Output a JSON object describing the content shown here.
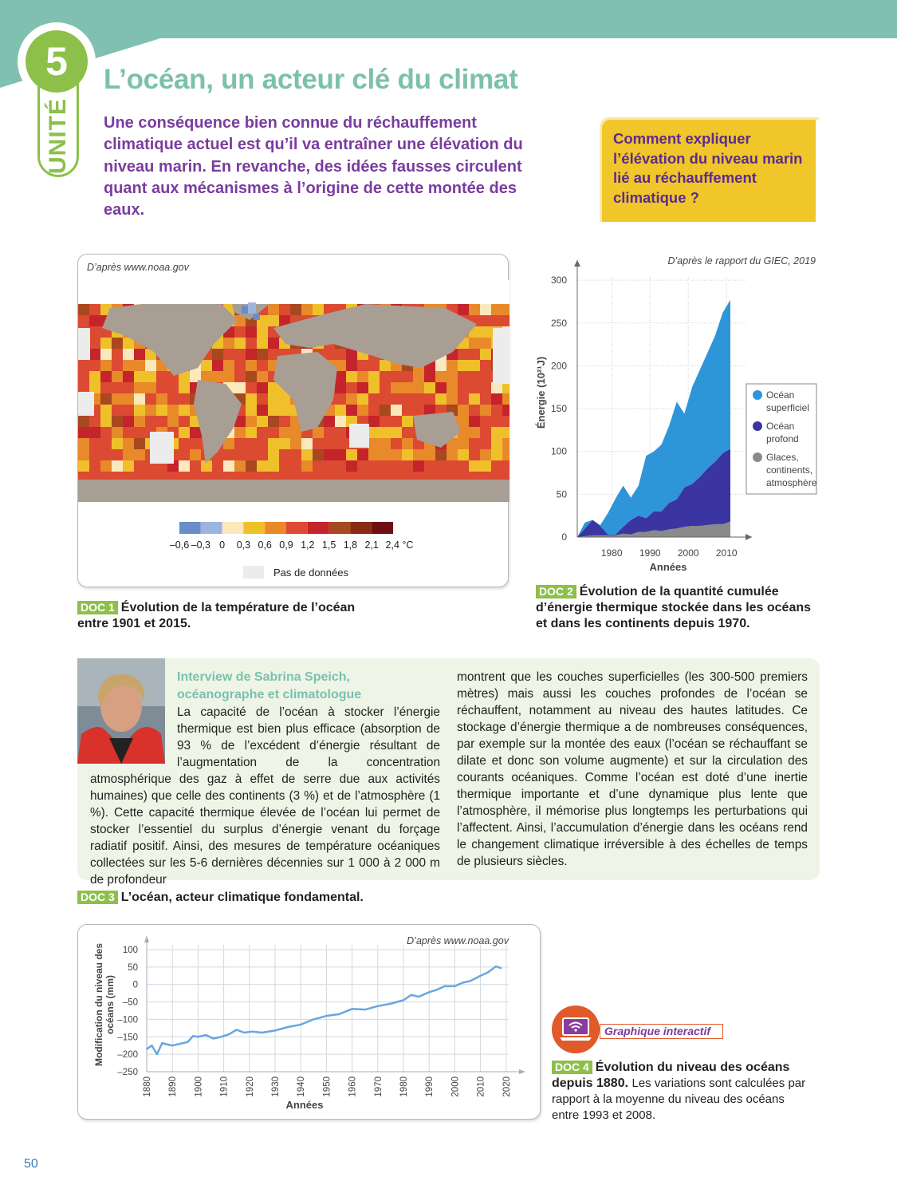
{
  "header": {
    "unit_number": "5",
    "unit_label": "UNITÉ",
    "title": "L’océan, un acteur clé du climat",
    "intro": "Une conséquence bien connue du réchauffement climatique actuel est qu’il va entraîner une élévation du niveau marin. En revanche, des idées fausses circulent quant aux mécanismes à l’origine de cette montée des eaux.",
    "question": "Comment expliquer l’élévation du niveau marin lié au réchauffement climatique ?"
  },
  "doc1": {
    "source": "D’après www.noaa.gov",
    "badge": "DOC 1",
    "caption": "Évolution de la température de l’océan entre 1901 et 2015.",
    "legend_colors": [
      "#6a8cc8",
      "#9eb4e0",
      "#fbe8bd",
      "#f0c02a",
      "#e8892a",
      "#dc4a32",
      "#c4242a",
      "#a8481e",
      "#8a2a14",
      "#6e1010"
    ],
    "legend_ticks": [
      "–0,6",
      "–0,3",
      "0",
      "0,3",
      "0,6",
      "0,9",
      "1,2",
      "1,5",
      "1,8",
      "2,1",
      "2,4 °C"
    ],
    "no_data_label": "Pas de données",
    "no_data_color": "#ececec"
  },
  "doc2": {
    "badge": "DOC 2",
    "caption": "Évolution de la quantité cumulée d’énergie thermique stockée dans les océans et dans les continents depuis 1970."
  },
  "doc3": {
    "badge": "DOC 3",
    "caption": "L’océan, acteur climatique fondamental.",
    "interview_title": "Interview de Sabrina Speich, océanographe et climatologue",
    "text_left": "La capacité de l’océan à stocker l’énergie thermique est bien plus efficace (absorption de 93 % de l’excédent d’énergie résultant de l’augmentation de la concentration atmosphérique des gaz à effet de serre due aux activités humaines) que celle des continents (3 %) et de l’atmosphère (1 %). Cette capacité thermique élevée de l’océan lui permet de stocker l’essentiel du surplus d’énergie venant du forçage radiatif positif. Ainsi, des mesures de température océaniques collectées sur les 5-6 dernières décennies sur 1 000 à 2 000 m de profondeur",
    "text_right": "montrent que les couches superficielles (les 300-500 premiers mètres) mais aussi les couches profondes de l’océan se réchauffent, notamment au niveau des hautes latitudes. Ce stockage d’énergie thermique a de nombreuses conséquences, par exemple sur la montée des eaux (l’océan se réchauffant se dilate et donc son volume augmente) et sur la circulation des courants océaniques. Comme l’océan est doté d’une inertie thermique importante et d’une dynamique plus lente que l’atmosphère, il mémorise plus longtemps les perturbations qui l’affectent. Ainsi, l’accumulation d’énergie dans les océans rend le changement climatique irréversible à des échelles de temps de plusieurs siècles."
  },
  "doc4": {
    "badge": "DOC 4",
    "caption_bold": "Évolution du niveau des océans depuis 1880.",
    "caption_normal": "Les variations sont calculées par rapport à la moyenne du niveau des océans entre 1993 et 2008.",
    "interactive_label": "Graphique interactif",
    "interactive_icon": "laptop-wifi-icon"
  },
  "page_number": "50",
  "chart_data": [
    {
      "type": "area",
      "stacked": true,
      "source": "D’après le rapport du GIEC, 2019",
      "xlabel": "Années",
      "ylabel": "Énergie (10²¹J)",
      "xlim": [
        1971,
        2015
      ],
      "ylim": [
        0,
        300
      ],
      "x_ticks": [
        "1980",
        "1990",
        "2000",
        "2010"
      ],
      "y_ticks": [
        "0",
        "50",
        "100",
        "150",
        "200",
        "250",
        "300"
      ],
      "legend_placement": "right",
      "x": [
        1971,
        1973,
        1975,
        1977,
        1979,
        1981,
        1983,
        1985,
        1987,
        1989,
        1991,
        1993,
        1995,
        1997,
        1999,
        2001,
        2003,
        2005,
        2007,
        2009,
        2011
      ],
      "series": [
        {
          "name": "Glaces, continents, atmosphère",
          "color": "#8a8a8a",
          "values": [
            0,
            1,
            2,
            2,
            2,
            2,
            4,
            3,
            6,
            6,
            8,
            7,
            9,
            10,
            12,
            13,
            13,
            14,
            15,
            15,
            18
          ]
        },
        {
          "name": "Océan profond",
          "color": "#3a35a0",
          "values": [
            0,
            9,
            18,
            11,
            1,
            1,
            8,
            17,
            19,
            16,
            22,
            23,
            31,
            34,
            46,
            49,
            57,
            66,
            73,
            83,
            85
          ]
        },
        {
          "name": "Océan superficiel",
          "color": "#2e95d8",
          "values": [
            0,
            7,
            0,
            1,
            25,
            42,
            48,
            26,
            35,
            73,
            70,
            78,
            90,
            114,
            86,
            113,
            125,
            135,
            147,
            164,
            174
          ]
        }
      ]
    },
    {
      "type": "line",
      "source": "D’après www.noaa.gov",
      "xlabel": "Années",
      "ylabel": "Modification du niveau des océans (mm)",
      "xlim": [
        1880,
        2020
      ],
      "ylim": [
        -250,
        100
      ],
      "grid": true,
      "color": "#6aa6e0",
      "x_ticks": [
        "1880",
        "1890",
        "1900",
        "1910",
        "1920",
        "1930",
        "1940",
        "1950",
        "1960",
        "1970",
        "1980",
        "1990",
        "2000",
        "2010",
        "2020"
      ],
      "y_ticks": [
        "100",
        "50",
        "0",
        "–50",
        "–100",
        "–150",
        "–200",
        "–250"
      ],
      "x": [
        1880,
        1882,
        1884,
        1886,
        1888,
        1890,
        1893,
        1896,
        1898,
        1900,
        1903,
        1906,
        1909,
        1912,
        1915,
        1918,
        1921,
        1925,
        1930,
        1935,
        1940,
        1945,
        1950,
        1955,
        1960,
        1965,
        1970,
        1975,
        1980,
        1983,
        1986,
        1990,
        1993,
        1996,
        2000,
        2003,
        2006,
        2010,
        2013,
        2016,
        2018
      ],
      "y": [
        -185,
        -175,
        -200,
        -168,
        -172,
        -175,
        -170,
        -165,
        -148,
        -150,
        -145,
        -155,
        -150,
        -143,
        -130,
        -138,
        -135,
        -138,
        -132,
        -122,
        -115,
        -100,
        -90,
        -85,
        -70,
        -72,
        -62,
        -55,
        -45,
        -30,
        -35,
        -22,
        -15,
        -5,
        -5,
        5,
        10,
        25,
        35,
        52,
        47
      ]
    }
  ]
}
